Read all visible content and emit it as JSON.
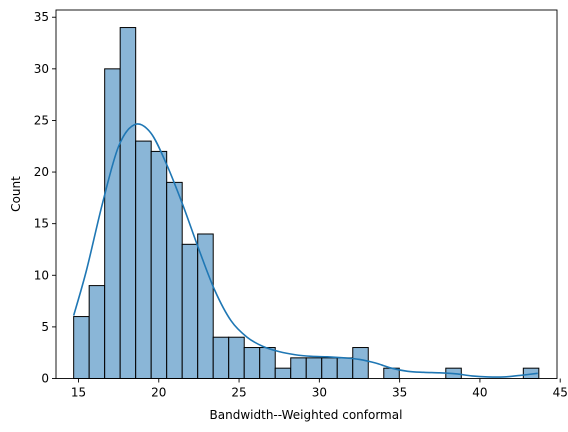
{
  "chart_data": {
    "type": "bar",
    "subtype": "histogram-with-kde",
    "title": "",
    "xlabel": "Bandwidth--Weighted conformal",
    "ylabel": "Count",
    "xlim": [
      13.6,
      44.8
    ],
    "ylim": [
      0,
      35.7
    ],
    "x_ticks": [
      15,
      20,
      25,
      30,
      35,
      40,
      45
    ],
    "y_ticks": [
      0,
      5,
      10,
      15,
      20,
      25,
      30,
      35
    ],
    "grid": false,
    "bins": {
      "start": 14.7,
      "width": 0.9656,
      "counts": [
        6,
        9,
        30,
        34,
        23,
        22,
        19,
        13,
        14,
        4,
        4,
        3,
        3,
        1,
        2,
        2,
        2,
        2,
        3,
        0,
        1,
        0,
        0,
        0,
        1,
        0,
        0,
        0,
        0,
        1
      ]
    },
    "kde": {
      "x": [
        14.7,
        15.5,
        16.5,
        17.5,
        18.5,
        19.5,
        20.5,
        21.5,
        22.5,
        23.5,
        24.5,
        25.5,
        26.5,
        27.5,
        28.5,
        29.5,
        30.5,
        31.5,
        32.5,
        33.5,
        34.5,
        35.5,
        36.5,
        37.5,
        38.5,
        39.5,
        40.5,
        41.5,
        42.5,
        43.6
      ],
      "y": [
        6.1,
        10.5,
        17.0,
        22.5,
        24.6,
        23.8,
        20.7,
        16.8,
        12.5,
        8.5,
        5.6,
        4.0,
        3.1,
        2.6,
        2.3,
        2.15,
        2.1,
        2.0,
        1.85,
        1.5,
        1.0,
        0.7,
        0.6,
        0.55,
        0.45,
        0.25,
        0.15,
        0.15,
        0.3,
        0.5
      ]
    },
    "colors": {
      "bar_fill": "#8ab6d7",
      "bar_edge": "#000000",
      "kde_line": "#1f77b4"
    }
  }
}
